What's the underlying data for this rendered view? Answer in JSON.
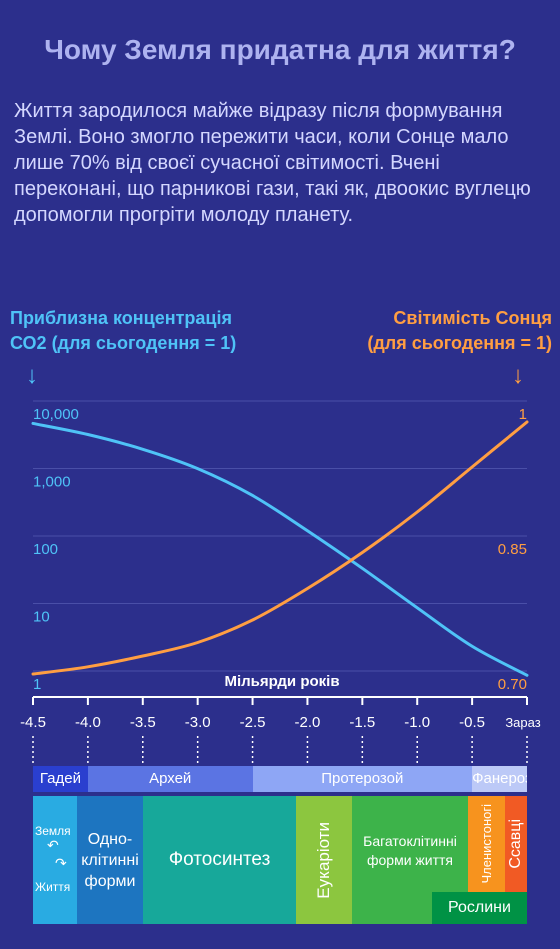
{
  "title": "Чому Земля придатна для життя?",
  "intro": "Життя зародилося майже відразу після формування Землі. Воно змогло пережити часи, коли Сонце мало лише 70% від своєї сучасної світимості. Вчені переконані, що парникові гази, такі як, двоокис вуглецю допомогли прогріти молоду планету.",
  "left_axis_title_1": "Приблизна концентрація",
  "left_axis_title_2": "СО2 (для сьогодення = 1)",
  "right_axis_title_1": "Світимість Сонця",
  "right_axis_title_2": "(для сьогодення = 1)",
  "arrow_glyph": "↓",
  "chart_data": {
    "type": "line",
    "xlabel": "Мільярди років",
    "x_ticks": [
      "-4.5",
      "-4.0",
      "-3.5",
      "-3.0",
      "-2.5",
      "-2.0",
      "-1.5",
      "-1.0",
      "-0.5",
      "Зараз"
    ],
    "x_tick_values": [
      -4.5,
      -4.0,
      -3.5,
      -3.0,
      -2.5,
      -2.0,
      -1.5,
      -1.0,
      -0.5,
      0
    ],
    "xlim": [
      -4.5,
      0
    ],
    "y_left": {
      "scale": "log",
      "ticks": [
        "10,000",
        "1,000",
        "100",
        "10",
        "1"
      ],
      "tick_values": [
        10000,
        1000,
        100,
        10,
        1
      ],
      "lim": [
        1,
        10000
      ],
      "color": "#4fc3f7"
    },
    "y_right": {
      "scale": "linear",
      "ticks": [
        "1",
        "0.85",
        "0.70"
      ],
      "tick_values": [
        1,
        0.85,
        0.7
      ],
      "lim": [
        0.7,
        1
      ],
      "color": "#ff9e42"
    },
    "series": [
      {
        "axis": "left",
        "color": "#4fc3f7",
        "x": [
          -4.5,
          -4.0,
          -3.5,
          -3.0,
          -2.5,
          -2.0,
          -1.5,
          -1.0,
          -0.5,
          0
        ],
        "y": [
          7000,
          4800,
          2900,
          1500,
          600,
          180,
          50,
          13,
          3.5,
          1.3
        ]
      },
      {
        "axis": "right",
        "color": "#ff9e42",
        "x": [
          -4.5,
          -4.0,
          -3.5,
          -3.0,
          -2.5,
          -2.0,
          -1.5,
          -1.0,
          -0.5,
          0
        ],
        "y": [
          0.71,
          0.718,
          0.73,
          0.745,
          0.77,
          0.805,
          0.845,
          0.89,
          0.94,
          0.99
        ]
      }
    ],
    "grid": true
  },
  "eras": [
    {
      "label": "Гадей",
      "from": -4.5,
      "to": -4.0,
      "color": "#2a3fcf"
    },
    {
      "label": "Архей",
      "from": -4.0,
      "to": -2.5,
      "color": "#5b74e3"
    },
    {
      "label": "Протерозой",
      "from": -2.5,
      "to": -0.5,
      "color": "#8ea6f5"
    },
    {
      "label": "Фанерозой",
      "from": -0.5,
      "to": 0,
      "color": "#bcc9f7"
    }
  ],
  "life": {
    "earth": "Земля",
    "life_word": "Життя",
    "unicellular_1": "Одно-",
    "unicellular_2": "клітинні",
    "unicellular_3": "форми",
    "photosynthesis": "Фотосинтез",
    "eukaryotes": "Eукаріоти",
    "multicellular_1": "Багатоклітинні",
    "multicellular_2": "форми життя",
    "arthropods": "Членистоногі",
    "mammals": "Ссавці",
    "plants": "Рослини"
  },
  "colors": {
    "background": "#2c2f8c",
    "earth_block": "#29abe2",
    "unicellular_block": "#1d75c0",
    "photosynthesis_block": "#17a89a",
    "eukaryotes_block": "#8cc63f",
    "multicellular_block": "#3db34a",
    "arthropods_block": "#f7931e",
    "mammals_block": "#f15a24",
    "plants_block": "#009245"
  }
}
